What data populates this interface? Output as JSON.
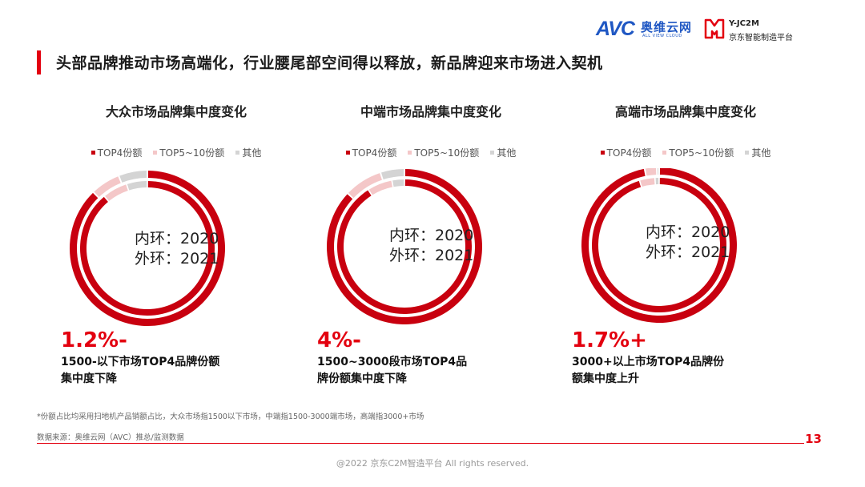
{
  "header": {
    "avc_logo_mark": "AVC",
    "avc_logo_cn": "奥维云网",
    "avc_logo_en": "ALL VIEW CLOUD",
    "jd_logo_en": "Y-JC2M",
    "jd_logo_cn": "京东智能制造平台"
  },
  "title": "头部品牌推动市场高端化，行业腰尾部空间得以释放，新品牌迎来市场进入契机",
  "colors": {
    "top4": "#c8000f",
    "top5_10": "#f4c7c8",
    "other": "#d4d4d4",
    "accent": "#e3000f"
  },
  "chart_data": [
    {
      "type": "donut",
      "title": "大众市场品牌集中度变化",
      "legend": [
        "TOP4份额",
        "TOP5~10份额",
        "其他"
      ],
      "inner_label": "内环：2020",
      "outer_label": "外环：2021",
      "rings": [
        {
          "name": "2020",
          "values": [
            89.0,
            6.0,
            5.0
          ]
        },
        {
          "name": "2021",
          "values": [
            87.8,
            6.2,
            6.0
          ]
        }
      ],
      "change": "1.2%-",
      "note": "1500-以下市场TOP4品牌份额集中度下降"
    },
    {
      "type": "donut",
      "title": "中端市场品牌集中度变化",
      "legend": [
        "TOP4份额",
        "TOP5~10份额",
        "其他"
      ],
      "inner_label": "内环：2020",
      "outer_label": "外环：2021",
      "rings": [
        {
          "name": "2020",
          "values": [
            91.0,
            6.0,
            3.0
          ]
        },
        {
          "name": "2021",
          "values": [
            87.0,
            8.0,
            5.0
          ]
        }
      ],
      "change": "4%-",
      "note": "1500~3000段市场TOP4品牌份额集中度下降"
    },
    {
      "type": "donut",
      "title": "高端市场品牌集中度变化",
      "legend": [
        "TOP4份额",
        "TOP5~10份额",
        "其他"
      ],
      "inner_label": "内环：2020",
      "outer_label": "外环：2021",
      "rings": [
        {
          "name": "2020",
          "values": [
            95.3,
            3.7,
            1.0
          ]
        },
        {
          "name": "2021",
          "values": [
            97.0,
            2.5,
            0.5
          ]
        }
      ],
      "change": "1.7%+",
      "note": "3000+以上市场TOP4品牌份额集中度上升"
    }
  ],
  "footnote": "*份额占比均采用扫地机产品销额占比，大众市场指1500以下市场，中端指1500-3000端市场，高端指3000+市场",
  "source": "数据来源：奥维云网（AVC）推总/监测数据",
  "page_number": "13",
  "copyright": "@2022 京东C2M智造平台 All rights reserved."
}
